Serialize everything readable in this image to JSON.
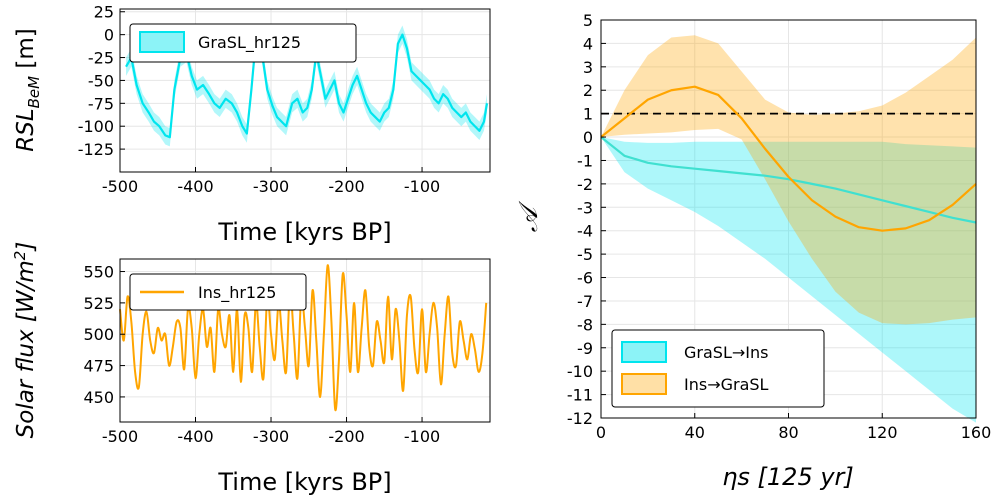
{
  "colors": {
    "cyan": "#00e5ee",
    "cyan_line": "#40e0d0",
    "orange": "#ffa500",
    "dashed": "#000000"
  },
  "chart_data": [
    {
      "type": "line",
      "panel": "top-left",
      "xlabel": "Time [kyrs BP]",
      "ylabel_main": "RSL",
      "ylabel_sub": "BeM",
      "ylabel_unit": " [m]",
      "xlim": [
        -500,
        -10
      ],
      "ylim": [
        -150,
        28
      ],
      "xticks": [
        -500,
        -400,
        -300,
        -200,
        -100
      ],
      "xtick_labels": [
        "-500",
        "-400",
        "-300",
        "-200",
        "-100"
      ],
      "yticks": [
        25,
        0,
        -25,
        -50,
        -75,
        -100,
        -125
      ],
      "ytick_labels": [
        "25",
        "0",
        "-25",
        "-50",
        "-75",
        "-100",
        "-125"
      ],
      "grid": true,
      "legend_position": "top-left",
      "series": [
        {
          "name": "GraSL_hr125",
          "band": 10,
          "x": [
            -492,
            -485,
            -478,
            -470,
            -462,
            -455,
            -448,
            -440,
            -434,
            -428,
            -420,
            -412,
            -405,
            -398,
            -390,
            -382,
            -375,
            -368,
            -360,
            -352,
            -345,
            -338,
            -332,
            -326,
            -320,
            -312,
            -305,
            -298,
            -292,
            -286,
            -280,
            -272,
            -265,
            -258,
            -252,
            -246,
            -240,
            -234,
            -228,
            -222,
            -216,
            -210,
            -204,
            -198,
            -192,
            -186,
            -180,
            -174,
            -168,
            -162,
            -156,
            -150,
            -144,
            -138,
            -132,
            -126,
            -120,
            -114,
            -108,
            -102,
            -96,
            -90,
            -84,
            -78,
            -72,
            -66,
            -60,
            -54,
            -48,
            -42,
            -36,
            -30,
            -24,
            -18,
            -14
          ],
          "values": [
            -35,
            -25,
            -55,
            -75,
            -85,
            -95,
            -100,
            -110,
            -112,
            -60,
            -25,
            -20,
            -45,
            -60,
            -55,
            -65,
            -75,
            -80,
            -70,
            -75,
            -85,
            -100,
            -108,
            -60,
            -5,
            -20,
            -60,
            -78,
            -90,
            -95,
            -100,
            -75,
            -70,
            -85,
            -80,
            -60,
            -20,
            -45,
            -70,
            -60,
            -50,
            -75,
            -85,
            -70,
            -55,
            -45,
            -60,
            -75,
            -85,
            -90,
            -95,
            -85,
            -80,
            -60,
            -10,
            0,
            -15,
            -40,
            -45,
            -50,
            -55,
            -60,
            -70,
            -75,
            -65,
            -70,
            -80,
            -85,
            -90,
            -85,
            -95,
            -100,
            -105,
            -95,
            -75
          ]
        }
      ]
    },
    {
      "type": "line",
      "panel": "bottom-left",
      "xlabel": "Time [kyrs BP]",
      "ylabel_main": "Solar flux [W/m",
      "ylabel_sup": "2",
      "ylabel_end": "]",
      "xlim": [
        -500,
        -10
      ],
      "ylim": [
        430,
        560
      ],
      "xticks": [
        -500,
        -400,
        -300,
        -200,
        -100
      ],
      "xtick_labels": [
        "-500",
        "-400",
        "-300",
        "-200",
        "-100"
      ],
      "yticks": [
        550,
        525,
        500,
        475,
        450
      ],
      "ytick_labels": [
        "550",
        "525",
        "500",
        "475",
        "450"
      ],
      "grid": true,
      "legend_position": "top-left",
      "series": [
        {
          "name": "Ins_hr125",
          "x": [
            -500,
            -495,
            -490,
            -485,
            -480,
            -475,
            -470,
            -465,
            -460,
            -455,
            -450,
            -445,
            -440,
            -435,
            -430,
            -425,
            -420,
            -415,
            -410,
            -405,
            -400,
            -395,
            -390,
            -385,
            -380,
            -375,
            -370,
            -365,
            -360,
            -355,
            -350,
            -345,
            -340,
            -335,
            -330,
            -325,
            -320,
            -315,
            -310,
            -305,
            -300,
            -295,
            -290,
            -285,
            -280,
            -275,
            -270,
            -265,
            -260,
            -255,
            -250,
            -245,
            -240,
            -235,
            -230,
            -225,
            -220,
            -215,
            -210,
            -205,
            -200,
            -195,
            -190,
            -185,
            -180,
            -175,
            -170,
            -165,
            -160,
            -155,
            -150,
            -145,
            -140,
            -135,
            -130,
            -125,
            -120,
            -115,
            -110,
            -105,
            -100,
            -95,
            -90,
            -85,
            -80,
            -75,
            -70,
            -65,
            -60,
            -55,
            -50,
            -45,
            -40,
            -35,
            -30,
            -25,
            -20,
            -15
          ],
          "values": [
            520,
            495,
            530,
            510,
            470,
            458,
            500,
            518,
            495,
            485,
            505,
            495,
            500,
            475,
            490,
            510,
            505,
            472,
            520,
            505,
            465,
            500,
            520,
            490,
            505,
            470,
            520,
            500,
            490,
            515,
            470,
            520,
            462,
            515,
            505,
            470,
            525,
            490,
            465,
            530,
            500,
            480,
            525,
            495,
            470,
            535,
            500,
            465,
            530,
            505,
            475,
            535,
            495,
            450,
            500,
            555,
            510,
            440,
            480,
            548,
            515,
            470,
            525,
            470,
            505,
            535,
            490,
            475,
            510,
            495,
            478,
            530,
            480,
            520,
            495,
            455,
            515,
            530,
            488,
            470,
            520,
            470,
            500,
            525,
            505,
            460,
            500,
            530,
            485,
            475,
            510,
            495,
            480,
            500,
            488,
            470,
            485,
            525
          ]
        }
      ]
    },
    {
      "type": "area",
      "panel": "right",
      "xlabel": "ηs [125 yr]",
      "ylabel": "𝒜",
      "xlim": [
        0,
        160
      ],
      "ylim": [
        -12,
        5
      ],
      "xticks": [
        0,
        40,
        80,
        120,
        160
      ],
      "xtick_labels": [
        "0",
        "40",
        "80",
        "120",
        "160"
      ],
      "yticks": [
        5,
        4,
        3,
        2,
        1,
        0,
        -1,
        -2,
        -3,
        -4,
        -5,
        -6,
        -7,
        -8,
        -9,
        -10,
        -11,
        -12
      ],
      "ytick_labels": [
        "5",
        "4",
        "3",
        "2",
        "1",
        "0",
        "-1",
        "-2",
        "-3",
        "-4",
        "-5",
        "-6",
        "-7",
        "-8",
        "-9",
        "-10",
        "-11",
        "-12"
      ],
      "grid": true,
      "legend_position": "bottom-left",
      "reference_line_y": 1,
      "series": [
        {
          "name": "GraSL→Ins",
          "x": [
            0,
            10,
            20,
            30,
            40,
            50,
            60,
            70,
            80,
            90,
            100,
            110,
            120,
            130,
            140,
            150,
            160
          ],
          "values": [
            0,
            -0.8,
            -1.1,
            -1.25,
            -1.35,
            -1.45,
            -1.55,
            -1.65,
            -1.8,
            -2.0,
            -2.2,
            -2.45,
            -2.7,
            -2.95,
            -3.2,
            -3.45,
            -3.65
          ],
          "upper": [
            0,
            -0.2,
            -0.25,
            -0.25,
            -0.2,
            -0.2,
            -0.2,
            -0.2,
            -0.2,
            -0.2,
            -0.2,
            -0.2,
            -0.2,
            -0.3,
            -0.35,
            -0.4,
            -0.45
          ],
          "lower": [
            0,
            -1.5,
            -2.2,
            -2.7,
            -3.2,
            -3.8,
            -4.5,
            -5.2,
            -6.0,
            -6.8,
            -7.6,
            -8.4,
            -9.2,
            -10.0,
            -10.8,
            -11.6,
            -12.2
          ]
        },
        {
          "name": "Ins→GraSL",
          "x": [
            0,
            10,
            20,
            30,
            40,
            50,
            60,
            70,
            80,
            90,
            100,
            110,
            120,
            130,
            140,
            150,
            160
          ],
          "values": [
            0,
            0.8,
            1.6,
            2.0,
            2.15,
            1.8,
            0.8,
            -0.5,
            -1.7,
            -2.7,
            -3.4,
            -3.85,
            -4.0,
            -3.9,
            -3.55,
            -2.9,
            -2.0
          ],
          "upper": [
            0,
            2.0,
            3.5,
            4.25,
            4.35,
            4.0,
            2.8,
            1.6,
            1.05,
            0.95,
            1.0,
            1.1,
            1.35,
            1.9,
            2.6,
            3.3,
            4.25
          ],
          "lower": [
            0,
            0.1,
            0.15,
            0.2,
            0.3,
            0.35,
            -0.1,
            -1.8,
            -3.6,
            -5.2,
            -6.6,
            -7.5,
            -7.95,
            -8.0,
            -7.95,
            -7.8,
            -7.7
          ]
        }
      ]
    }
  ]
}
